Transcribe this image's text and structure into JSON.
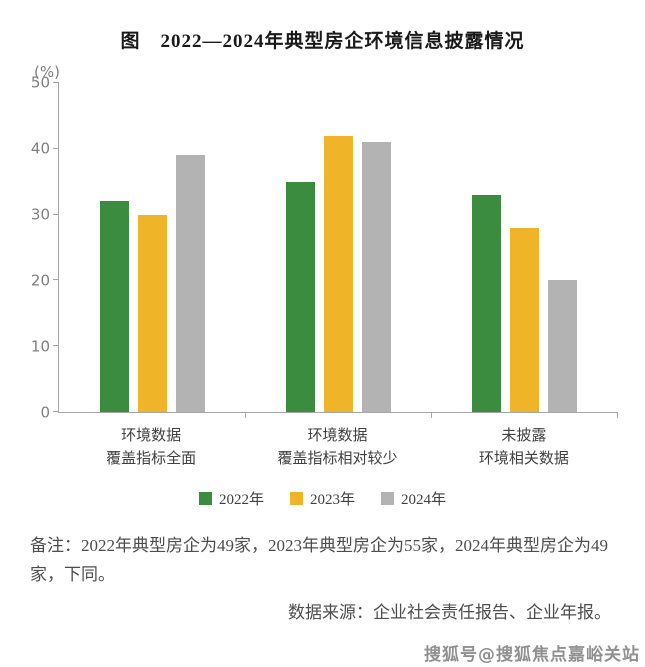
{
  "title": "图　2022—2024年典型房企环境信息披露情况",
  "chart_data": {
    "type": "bar",
    "title": "2022—2024年典型房企环境信息披露情况",
    "ylabel": "(%)",
    "xlabel": "",
    "ylim": [
      0,
      50
    ],
    "yticks": [
      0,
      10,
      20,
      30,
      40,
      50
    ],
    "grid": false,
    "legend_position": "bottom",
    "categories": [
      "环境数据\n覆盖指标全面",
      "环境数据\n覆盖指标相对较少",
      "未披露\n环境相关数据"
    ],
    "series": [
      {
        "name": "2022年",
        "color": "#3B8C3F",
        "values": [
          32,
          35,
          33
        ]
      },
      {
        "name": "2023年",
        "color": "#F0B429",
        "values": [
          30,
          42,
          28
        ]
      },
      {
        "name": "2024年",
        "color": "#B3B3B3",
        "values": [
          39,
          41,
          20
        ]
      }
    ]
  },
  "notes": {
    "remark": "备注：2022年典型房企为49家，2023年典型房企为55家，2024年典型房企为49家，下同。",
    "source": "数据来源：企业社会责任报告、企业年报。"
  },
  "watermark": "搜狐号@搜狐焦点嘉峪关站"
}
